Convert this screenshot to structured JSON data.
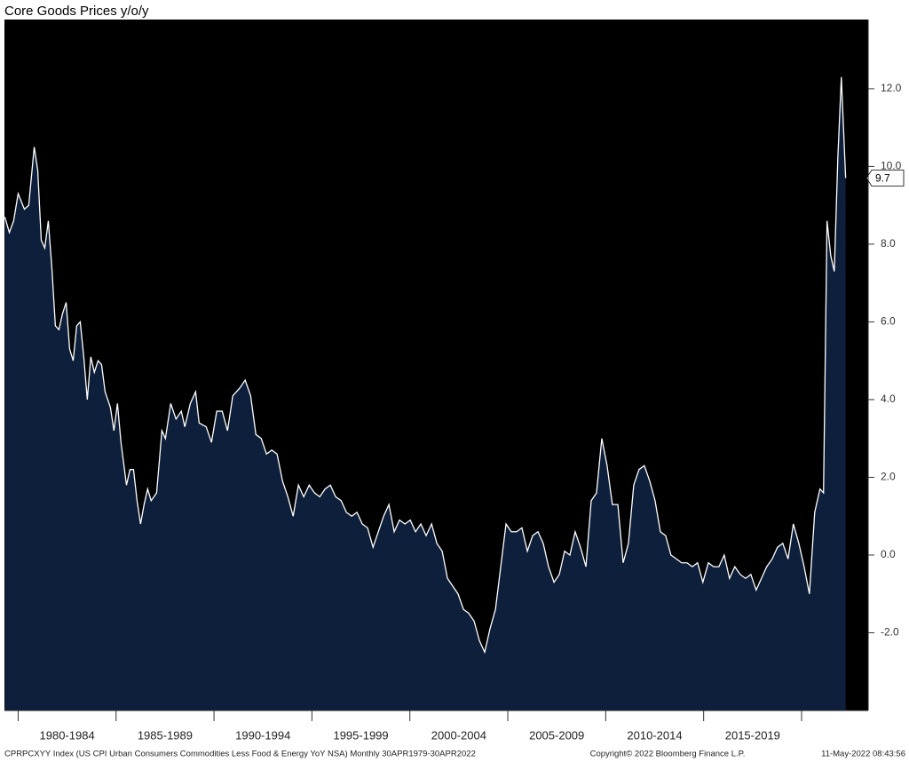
{
  "chart_data": {
    "type": "area",
    "title": "Core Goods Prices y/o/y",
    "footer": {
      "source": "CPRPCXYY Index (US CPI Urban Consumers Commodities Less Food & Energy YoY NSA)  Monthly 30APR1979-30APR2022",
      "copyright": "Copyright© 2022 Bloomberg Finance L.P.",
      "timestamp": "11-May-2022 08:43:56"
    },
    "color": "#0e1f3b",
    "line_color": "#ffffff",
    "background": "#000000",
    "xlim": [
      1979.3,
      2023.4
    ],
    "xticks": [
      1980,
      1985,
      1990,
      1995,
      2000,
      2005,
      2010,
      2015,
      2020
    ],
    "x_band_labels": [
      "1980-1984",
      "1985-1989",
      "1990-1994",
      "1995-1999",
      "2000-2004",
      "2005-2009",
      "2010-2014",
      "2015-2019"
    ],
    "ylim": [
      -4.0,
      13.78
    ],
    "yticks": [
      {
        "value": -2,
        "label": "-2.0"
      },
      {
        "value": 0,
        "label": "0.0"
      },
      {
        "value": 2,
        "label": "2.0"
      },
      {
        "value": 4,
        "label": "4.0"
      },
      {
        "value": 6,
        "label": "6.0"
      },
      {
        "value": 8,
        "label": "8.0"
      },
      {
        "value": 10,
        "label": "10.0"
      },
      {
        "value": 12,
        "label": "12.0"
      }
    ],
    "y_axis_side": "right",
    "grid": false,
    "last_value_label": true,
    "x": [
      1979.32,
      1979.55,
      1979.77,
      1980.0,
      1980.32,
      1980.54,
      1980.82,
      1981.0,
      1981.18,
      1981.36,
      1981.54,
      1981.72,
      1981.9,
      1982.08,
      1982.26,
      1982.45,
      1982.63,
      1982.81,
      1982.99,
      1983.17,
      1983.35,
      1983.53,
      1983.71,
      1983.89,
      1984.08,
      1984.26,
      1984.44,
      1984.71,
      1984.89,
      1985.07,
      1985.25,
      1985.53,
      1985.71,
      1985.89,
      1986.07,
      1986.25,
      1986.43,
      1986.61,
      1986.79,
      1987.07,
      1987.34,
      1987.52,
      1987.79,
      1988.06,
      1988.33,
      1988.51,
      1988.79,
      1989.06,
      1989.24,
      1989.6,
      1989.87,
      1990.14,
      1990.42,
      1990.69,
      1990.96,
      1991.32,
      1991.59,
      1991.87,
      1992.14,
      1992.41,
      1992.68,
      1992.95,
      1993.22,
      1993.5,
      1993.77,
      1994.04,
      1994.31,
      1994.58,
      1994.86,
      1995.13,
      1995.4,
      1995.67,
      1995.94,
      1996.21,
      1996.49,
      1996.76,
      1997.03,
      1997.3,
      1997.57,
      1997.84,
      1998.12,
      1998.39,
      1998.66,
      1998.93,
      1999.2,
      1999.47,
      1999.75,
      2000.02,
      2000.29,
      2000.56,
      2000.83,
      2001.11,
      2001.38,
      2001.65,
      2001.92,
      2002.19,
      2002.46,
      2002.74,
      2003.01,
      2003.28,
      2003.55,
      2003.82,
      2004.09,
      2004.37,
      2004.64,
      2004.91,
      2005.18,
      2005.45,
      2005.72,
      2006.0,
      2006.27,
      2006.54,
      2006.81,
      2007.08,
      2007.36,
      2007.63,
      2007.9,
      2008.17,
      2008.44,
      2008.71,
      2008.99,
      2009.26,
      2009.53,
      2009.8,
      2010.07,
      2010.34,
      2010.62,
      2010.89,
      2011.16,
      2011.43,
      2011.7,
      2011.97,
      2012.25,
      2012.52,
      2012.79,
      2013.06,
      2013.33,
      2013.61,
      2013.88,
      2014.15,
      2014.42,
      2014.69,
      2014.96,
      2015.24,
      2015.51,
      2015.78,
      2016.05,
      2016.32,
      2016.59,
      2016.87,
      2017.14,
      2017.41,
      2017.68,
      2017.95,
      2018.22,
      2018.5,
      2018.77,
      2019.04,
      2019.31,
      2019.58,
      2019.86,
      2020.13,
      2020.4,
      2020.67,
      2020.94,
      2021.12,
      2021.3,
      2021.49,
      2021.67,
      2021.85,
      2022.03,
      2022.25
    ],
    "values": [
      8.7,
      8.3,
      8.6,
      9.3,
      8.9,
      9.0,
      10.5,
      9.9,
      8.1,
      7.9,
      8.6,
      7.4,
      5.9,
      5.8,
      6.2,
      6.5,
      5.3,
      5.0,
      5.9,
      6.0,
      5.1,
      4.0,
      5.1,
      4.7,
      5.0,
      4.9,
      4.2,
      3.8,
      3.2,
      3.9,
      2.9,
      1.8,
      2.2,
      2.2,
      1.4,
      0.8,
      1.3,
      1.7,
      1.4,
      1.6,
      3.2,
      3.0,
      3.9,
      3.5,
      3.7,
      3.3,
      3.9,
      4.2,
      3.4,
      3.3,
      2.9,
      3.7,
      3.7,
      3.2,
      4.1,
      4.3,
      4.5,
      4.1,
      3.1,
      3.0,
      2.6,
      2.7,
      2.6,
      1.9,
      1.5,
      1.0,
      1.8,
      1.5,
      1.8,
      1.6,
      1.5,
      1.7,
      1.8,
      1.5,
      1.4,
      1.1,
      1.0,
      1.1,
      0.8,
      0.7,
      0.2,
      0.6,
      1.0,
      1.3,
      0.6,
      0.9,
      0.8,
      0.9,
      0.6,
      0.8,
      0.5,
      0.8,
      0.3,
      0.1,
      -0.6,
      -0.8,
      -1.0,
      -1.4,
      -1.5,
      -1.7,
      -2.2,
      -2.5,
      -1.9,
      -1.4,
      -0.3,
      0.8,
      0.6,
      0.6,
      0.7,
      0.1,
      0.5,
      0.6,
      0.3,
      -0.3,
      -0.7,
      -0.5,
      0.1,
      0.0,
      0.6,
      0.2,
      -0.3,
      1.4,
      1.6,
      3.0,
      2.3,
      1.3,
      1.3,
      -0.2,
      0.3,
      1.8,
      2.2,
      2.3,
      1.9,
      1.4,
      0.6,
      0.5,
      0.0,
      -0.1,
      -0.2,
      -0.2,
      -0.3,
      -0.2,
      -0.7,
      -0.2,
      -0.3,
      -0.3,
      0.0,
      -0.6,
      -0.3,
      -0.5,
      -0.6,
      -0.5,
      -0.9,
      -0.6,
      -0.3,
      -0.1,
      0.2,
      0.3,
      -0.1,
      0.8,
      0.3,
      -0.3,
      -1.0,
      1.1,
      1.7,
      1.6,
      8.6,
      7.7,
      7.3,
      10.2,
      12.3,
      9.7
    ]
  }
}
